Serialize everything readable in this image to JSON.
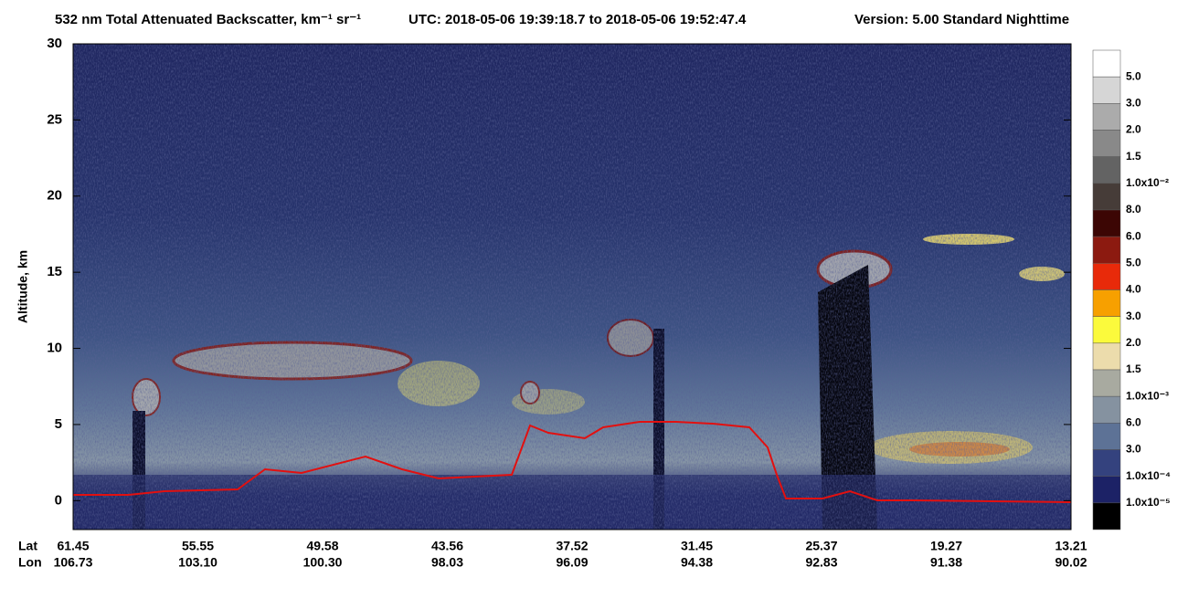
{
  "chart_data": {
    "type": "curtain",
    "title": "532 nm Total Attenuated Backscatter, km⁻¹ sr⁻¹",
    "utc": "UTC:  2018-05-06 19:39:18.7  to  2018-05-06 19:52:47.4",
    "version": "Version: 5.00  Standard  Nighttime",
    "y_label": "Altitude, km",
    "ylim": [
      -1.9,
      30
    ],
    "yticks": [
      0,
      5,
      10,
      15,
      20,
      25,
      30
    ],
    "x_rows": [
      {
        "name": "Lat",
        "labels": [
          "61.45",
          "55.55",
          "49.58",
          "43.56",
          "37.52",
          "31.45",
          "25.37",
          "19.27",
          "13.21"
        ]
      },
      {
        "name": "Lon",
        "labels": [
          "106.73",
          "103.10",
          "100.30",
          "98.03",
          "96.09",
          "94.38",
          "92.83",
          "91.38",
          "90.02"
        ]
      }
    ],
    "colorbar": {
      "colors": [
        "#ffffff",
        "#d6d6d6",
        "#ababab",
        "#898989",
        "#636363",
        "#463c38",
        "#3c0604",
        "#8c1a10",
        "#e82a0a",
        "#f7a000",
        "#fbfa3c",
        "#ecdcac",
        "#a8aaa0",
        "#8592a0",
        "#5d7296",
        "#34427e",
        "#1c2266",
        "#000000"
      ],
      "labels": [
        "5.0",
        "3.0",
        "2.0",
        "1.5",
        "1.0x10⁻²",
        "8.0",
        "6.0",
        "5.0",
        "4.0",
        "3.0",
        "2.0",
        "1.5",
        "1.0x10⁻³",
        "6.0",
        "3.0",
        "1.0x10⁻⁴",
        "1.0x10⁻⁵"
      ]
    }
  }
}
